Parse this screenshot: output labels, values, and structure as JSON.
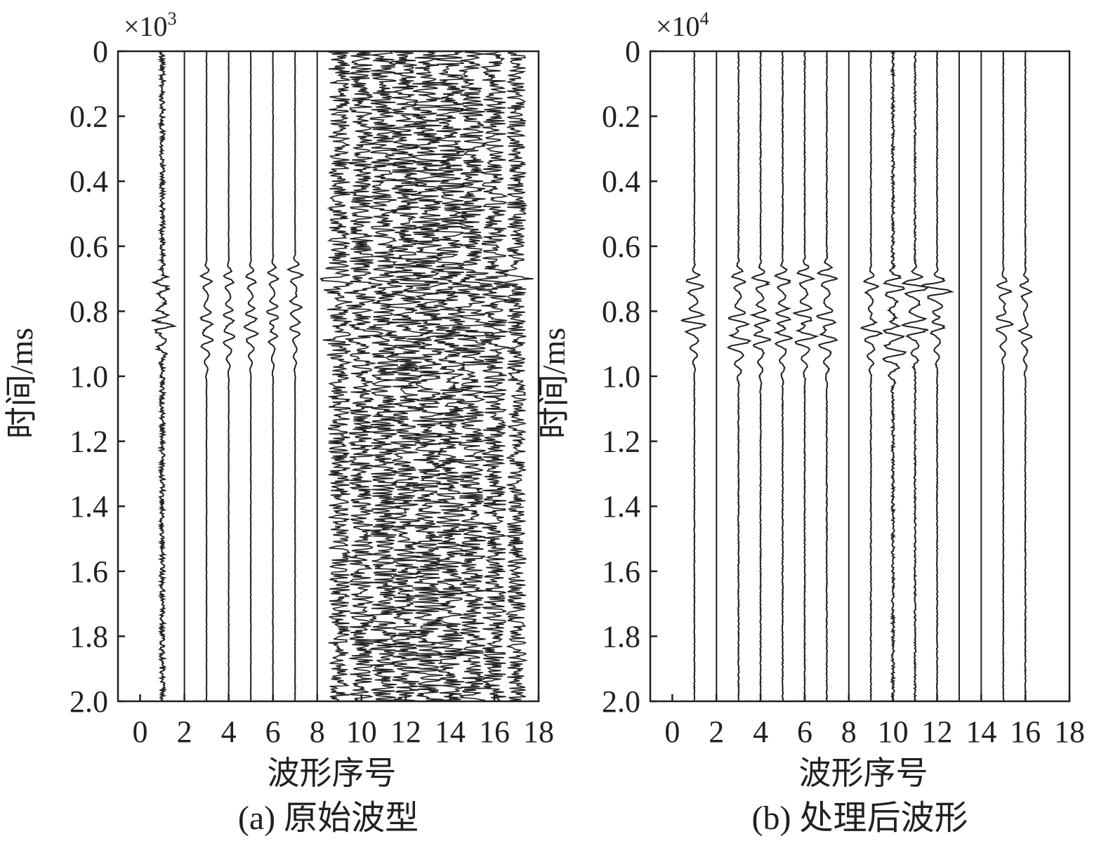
{
  "chart_data": [
    {
      "type": "line",
      "caption": "(a) 原始波型",
      "xlabel": "波形序号",
      "ylabel": "时间/ms",
      "x_multiplier": "×10",
      "x_multiplier_exp": "3",
      "xlim": [
        -1,
        18
      ],
      "ylim": [
        2.0,
        0
      ],
      "xticks": [
        0,
        2,
        4,
        6,
        8,
        10,
        12,
        14,
        16,
        18
      ],
      "xtick_labels": [
        "0",
        "2",
        "4",
        "6",
        "8",
        "10",
        "12",
        "14",
        "16",
        "18"
      ],
      "yticks": [
        0,
        0.2,
        0.4,
        0.6,
        0.8,
        1.0,
        1.2,
        1.4,
        1.6,
        1.8,
        2.0
      ],
      "ytick_labels": [
        "0",
        "0.2",
        "0.4",
        "0.6",
        "0.8",
        "1.0",
        "1.2",
        "1.4",
        "1.6",
        "1.8",
        "2.0"
      ],
      "grid": false,
      "traces": [
        {
          "index": 1,
          "noise": 0.22,
          "events": [
            {
              "t": 0.72,
              "amp": 0.6
            },
            {
              "t": 0.835,
              "amp": 0.9
            }
          ]
        },
        {
          "index": 2,
          "noise": 0.0,
          "events": []
        },
        {
          "index": 3,
          "noise": 0.02,
          "events": [
            {
              "t": 0.7,
              "amp": 0.45
            },
            {
              "t": 0.83,
              "amp": 0.55
            },
            {
              "t": 0.88,
              "amp": 0.4
            }
          ]
        },
        {
          "index": 4,
          "noise": 0.02,
          "events": [
            {
              "t": 0.7,
              "amp": 0.45
            },
            {
              "t": 0.82,
              "amp": 0.55
            },
            {
              "t": 0.87,
              "amp": 0.4
            }
          ]
        },
        {
          "index": 5,
          "noise": 0.02,
          "events": [
            {
              "t": 0.7,
              "amp": 0.45
            },
            {
              "t": 0.815,
              "amp": 0.55
            },
            {
              "t": 0.86,
              "amp": 0.4
            }
          ]
        },
        {
          "index": 6,
          "noise": 0.02,
          "events": [
            {
              "t": 0.69,
              "amp": 0.45
            },
            {
              "t": 0.81,
              "amp": 0.55
            },
            {
              "t": 0.87,
              "amp": 0.4
            }
          ]
        },
        {
          "index": 7,
          "noise": 0.02,
          "events": [
            {
              "t": 0.68,
              "amp": 0.6
            },
            {
              "t": 0.78,
              "amp": 0.5
            },
            {
              "t": 0.86,
              "amp": 0.4
            }
          ]
        },
        {
          "index": 8,
          "noise": 0.0,
          "events": []
        },
        {
          "index": 9,
          "noise": 0.9,
          "events": [
            {
              "t": 0.71,
              "amp": 1.2
            },
            {
              "t": 0.86,
              "amp": 1.1
            }
          ]
        },
        {
          "index": 10,
          "noise": 1.0,
          "events": [
            {
              "t": 0.71,
              "amp": 1.2
            },
            {
              "t": 0.86,
              "amp": 1.1
            }
          ]
        },
        {
          "index": 11,
          "noise": 1.1,
          "events": [
            {
              "t": 0.71,
              "amp": 1.2
            },
            {
              "t": 0.86,
              "amp": 1.1
            }
          ]
        },
        {
          "index": 12,
          "noise": 1.2,
          "events": [
            {
              "t": 0.71,
              "amp": 1.2
            },
            {
              "t": 0.86,
              "amp": 1.1
            }
          ]
        },
        {
          "index": 13,
          "noise": 1.3,
          "events": [
            {
              "t": 0.71,
              "amp": 1.2
            },
            {
              "t": 0.86,
              "amp": 1.1
            }
          ]
        },
        {
          "index": 14,
          "noise": 1.2,
          "events": [
            {
              "t": 0.71,
              "amp": 1.2
            },
            {
              "t": 0.86,
              "amp": 1.1
            }
          ]
        },
        {
          "index": 15,
          "noise": 1.1,
          "events": [
            {
              "t": 0.71,
              "amp": 1.2
            },
            {
              "t": 0.86,
              "amp": 1.1
            }
          ]
        },
        {
          "index": 16,
          "noise": 1.0,
          "events": [
            {
              "t": 0.71,
              "amp": 1.0
            },
            {
              "t": 0.86,
              "amp": 0.9
            }
          ]
        },
        {
          "index": 17,
          "noise": 0.8,
          "events": [
            {
              "t": 0.69,
              "amp": 0.8
            }
          ]
        }
      ]
    },
    {
      "type": "line",
      "caption": "(b) 处理后波形",
      "xlabel": "波形序号",
      "ylabel": "时间/ms",
      "x_multiplier": "×10",
      "x_multiplier_exp": "4",
      "xlim": [
        -1,
        18
      ],
      "ylim": [
        2.0,
        0
      ],
      "xticks": [
        0,
        2,
        4,
        6,
        8,
        10,
        12,
        14,
        16,
        18
      ],
      "xtick_labels": [
        "0",
        "2",
        "4",
        "6",
        "8",
        "10",
        "12",
        "14",
        "16",
        "18"
      ],
      "yticks": [
        0,
        0.2,
        0.4,
        0.6,
        0.8,
        1.0,
        1.2,
        1.4,
        1.6,
        1.8,
        2.0
      ],
      "ytick_labels": [
        "0",
        "0.2",
        "0.4",
        "0.6",
        "0.8",
        "1.0",
        "1.2",
        "1.4",
        "1.6",
        "1.8",
        "2.0"
      ],
      "grid": false,
      "traces": [
        {
          "index": 1,
          "noise": 0.03,
          "events": [
            {
              "t": 0.715,
              "amp": 0.8
            },
            {
              "t": 0.835,
              "amp": 1.1
            }
          ]
        },
        {
          "index": 2,
          "noise": 0.0,
          "events": []
        },
        {
          "index": 3,
          "noise": 0.04,
          "events": [
            {
              "t": 0.7,
              "amp": 0.6
            },
            {
              "t": 0.83,
              "amp": 0.9
            },
            {
              "t": 0.885,
              "amp": 0.9
            }
          ]
        },
        {
          "index": 4,
          "noise": 0.04,
          "events": [
            {
              "t": 0.705,
              "amp": 0.7
            },
            {
              "t": 0.82,
              "amp": 0.8
            },
            {
              "t": 0.88,
              "amp": 0.8
            }
          ]
        },
        {
          "index": 5,
          "noise": 0.04,
          "events": [
            {
              "t": 0.7,
              "amp": 0.7
            },
            {
              "t": 0.815,
              "amp": 0.8
            },
            {
              "t": 0.875,
              "amp": 0.8
            }
          ]
        },
        {
          "index": 6,
          "noise": 0.04,
          "events": [
            {
              "t": 0.69,
              "amp": 0.7
            },
            {
              "t": 0.815,
              "amp": 0.9
            },
            {
              "t": 0.87,
              "amp": 0.8
            }
          ]
        },
        {
          "index": 7,
          "noise": 0.04,
          "events": [
            {
              "t": 0.69,
              "amp": 0.8
            },
            {
              "t": 0.825,
              "amp": 0.9
            },
            {
              "t": 0.88,
              "amp": 0.7
            }
          ]
        },
        {
          "index": 8,
          "noise": 0.0,
          "events": []
        },
        {
          "index": 9,
          "noise": 0.04,
          "events": [
            {
              "t": 0.715,
              "amp": 0.6
            },
            {
              "t": 0.86,
              "amp": 0.9
            }
          ]
        },
        {
          "index": 10,
          "noise": 0.12,
          "events": [
            {
              "t": 0.72,
              "amp": 1.0
            },
            {
              "t": 0.87,
              "amp": 1.0
            },
            {
              "t": 0.92,
              "amp": 0.8
            }
          ]
        },
        {
          "index": 11,
          "noise": 0.07,
          "events": [
            {
              "t": 0.72,
              "amp": 1.2
            },
            {
              "t": 0.85,
              "amp": 1.0
            }
          ]
        },
        {
          "index": 12,
          "noise": 0.04,
          "events": [
            {
              "t": 0.73,
              "amp": 1.3
            },
            {
              "t": 0.84,
              "amp": 0.8
            }
          ]
        },
        {
          "index": 13,
          "noise": 0.0,
          "events": []
        },
        {
          "index": 14,
          "noise": 0.0,
          "events": []
        },
        {
          "index": 15,
          "noise": 0.03,
          "events": [
            {
              "t": 0.73,
              "amp": 0.6
            },
            {
              "t": 0.83,
              "amp": 0.8
            }
          ]
        },
        {
          "index": 16,
          "noise": 0.04,
          "events": [
            {
              "t": 0.73,
              "amp": 0.5
            },
            {
              "t": 0.87,
              "amp": 0.5
            }
          ]
        }
      ]
    }
  ]
}
